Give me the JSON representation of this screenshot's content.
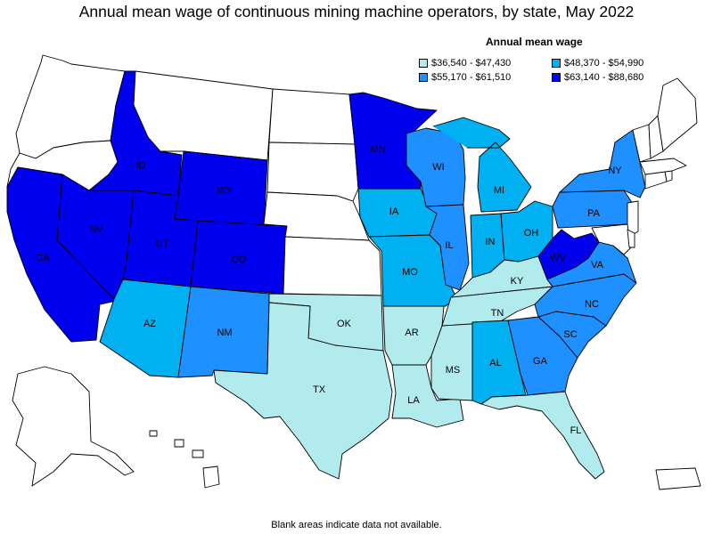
{
  "title": "Annual mean wage of continuous mining machine operators, by state, May 2022",
  "legend": {
    "title": "Annual mean wage",
    "bins": [
      {
        "label": "$36,540 - $47,430",
        "color": "#b2ebee"
      },
      {
        "label": "$48,370 - $54,990",
        "color": "#00b0f0"
      },
      {
        "label": "$55,170 - $61,510",
        "color": "#1e90ff"
      },
      {
        "label": "$63,140 - $88,680",
        "color": "#0000ee"
      }
    ]
  },
  "no_data_color": "#ffffff",
  "states": [
    {
      "code": "CA",
      "bin": 3
    },
    {
      "code": "NV",
      "bin": 3
    },
    {
      "code": "ID",
      "bin": 3
    },
    {
      "code": "UT",
      "bin": 3
    },
    {
      "code": "WY",
      "bin": 3
    },
    {
      "code": "CO",
      "bin": 3
    },
    {
      "code": "MN",
      "bin": 3
    },
    {
      "code": "WV",
      "bin": 3
    },
    {
      "code": "AZ",
      "bin": 1
    },
    {
      "code": "IA",
      "bin": 1
    },
    {
      "code": "MO",
      "bin": 1
    },
    {
      "code": "MI",
      "bin": 1
    },
    {
      "code": "IN",
      "bin": 1
    },
    {
      "code": "OH",
      "bin": 1
    },
    {
      "code": "AL",
      "bin": 1
    },
    {
      "code": "NM",
      "bin": 2
    },
    {
      "code": "WI",
      "bin": 2
    },
    {
      "code": "IL",
      "bin": 2
    },
    {
      "code": "NY",
      "bin": 2
    },
    {
      "code": "PA",
      "bin": 2
    },
    {
      "code": "VA",
      "bin": 2
    },
    {
      "code": "NC",
      "bin": 2
    },
    {
      "code": "SC",
      "bin": 2
    },
    {
      "code": "GA",
      "bin": 2
    },
    {
      "code": "OK",
      "bin": 0
    },
    {
      "code": "TX",
      "bin": 0
    },
    {
      "code": "AR",
      "bin": 0
    },
    {
      "code": "LA",
      "bin": 0
    },
    {
      "code": "MS",
      "bin": 0
    },
    {
      "code": "TN",
      "bin": 0
    },
    {
      "code": "KY",
      "bin": 0
    },
    {
      "code": "FL",
      "bin": 0
    }
  ],
  "footnote": "Blank areas indicate data not available."
}
